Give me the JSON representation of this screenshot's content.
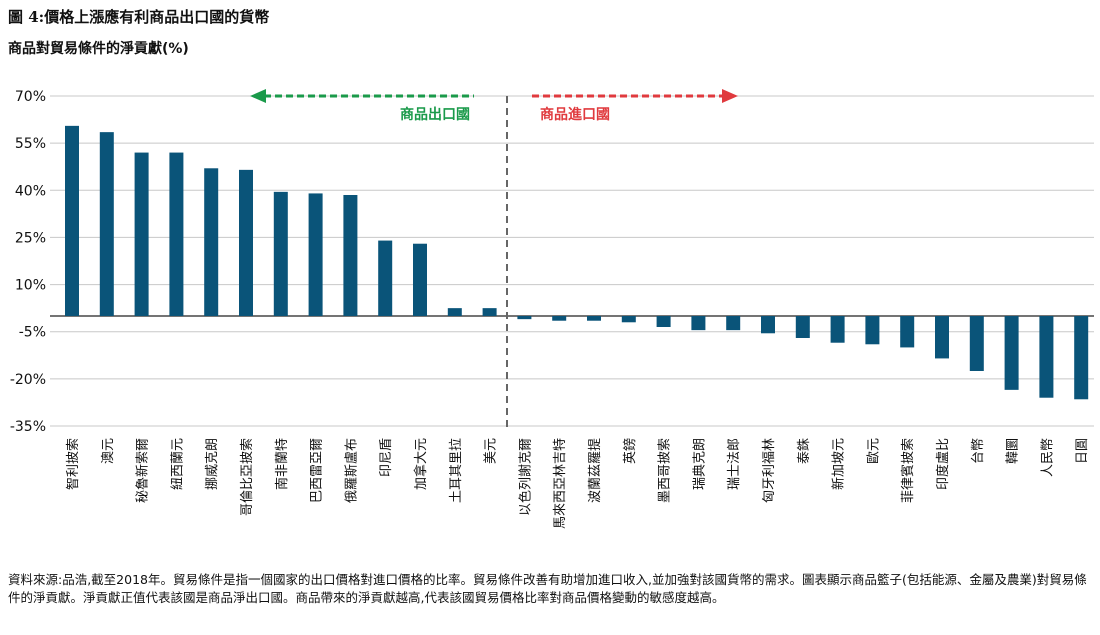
{
  "header": {
    "title": "圖 4:價格上漲應有利商品出口國的貨幣",
    "subtitle": "商品對貿易條件的淨貢獻(%)"
  },
  "footnote": "資料來源:品浩,截至2018年。貿易條件是指一個國家的出口價格對進口價格的比率。貿易條件改善有助增加進口收入,並加強對該國貨幣的需求。圖表顯示商品籃子(包括能源、金屬及農業)對貿易條件的淨貢獻。淨貢獻正值代表該國是商品淨出口國。商品帶來的淨貢獻越高,代表該國貿易價格比率對商品價格變動的敏感度越高。",
  "colors": {
    "bar": "#0a5479",
    "exporter_arrow": "#1a9a4a",
    "importer_arrow": "#e03a3e",
    "grid": "#c8c8c8",
    "divider": "#666666"
  },
  "chart_data": {
    "type": "bar",
    "title": "商品對貿易條件的淨貢獻(%)",
    "xlabel": "",
    "ylabel": "",
    "ylim": [
      -35,
      70
    ],
    "yticks": [
      70,
      55,
      40,
      25,
      10,
      -5,
      -20,
      -35
    ],
    "ytick_labels": [
      "70%",
      "55%",
      "40%",
      "25%",
      "10%",
      "-5%",
      "-20%",
      "-35%"
    ],
    "categories": [
      "智利披索",
      "澳元",
      "秘魯新索爾",
      "紐西蘭元",
      "挪威克朗",
      "哥倫比亞披索",
      "南非蘭特",
      "巴西雷亞爾",
      "俄羅斯盧布",
      "印尼盾",
      "加拿大元",
      "土耳其里拉",
      "美元",
      "以色列謝克爾",
      "馬來西亞林吉特",
      "波蘭茲羅提",
      "英鎊",
      "墨西哥披索",
      "瑞典克朗",
      "瑞士法郎",
      "匈牙利福林",
      "泰銖",
      "新加坡元",
      "歐元",
      "菲律賓披索",
      "印度盧比",
      "台幣",
      "韓圜",
      "人民幣",
      "日圓"
    ],
    "values": [
      60.5,
      58.5,
      52,
      52,
      47,
      46.5,
      39.5,
      39,
      38.5,
      24,
      23,
      2.5,
      2.5,
      -1,
      -1.5,
      -1.5,
      -2,
      -3.5,
      -4.5,
      -4.5,
      -5.5,
      -7,
      -8.5,
      -9,
      -10,
      -13.5,
      -17.5,
      -23.5,
      -26,
      -26.5
    ],
    "annotations": {
      "exporters": "商品出口國",
      "importers": "商品進口國"
    },
    "divider_after_category": "美元"
  }
}
